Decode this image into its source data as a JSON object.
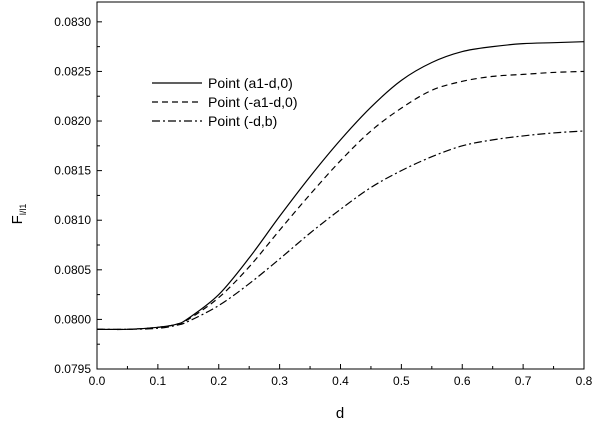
{
  "chart_data": {
    "type": "line",
    "title": "",
    "xlabel": "d",
    "ylabel_main": "F",
    "ylabel_sub": "l/l1",
    "xlim": [
      0.0,
      0.8
    ],
    "ylim": [
      0.0795,
      0.0832
    ],
    "xticks": [
      0.0,
      0.1,
      0.2,
      0.3,
      0.4,
      0.5,
      0.6,
      0.7,
      0.8
    ],
    "xtick_labels": [
      "0.0",
      "0.1",
      "0.2",
      "0.3",
      "0.4",
      "0.5",
      "0.6",
      "0.7",
      "0.8"
    ],
    "yticks": [
      0.0795,
      0.08,
      0.0805,
      0.081,
      0.0815,
      0.082,
      0.0825,
      0.083
    ],
    "ytick_labels": [
      "0.0795",
      "0.0800",
      "0.0805",
      "0.0810",
      "0.0815",
      "0.0820",
      "0.0825",
      "0.0830"
    ],
    "grid": false,
    "legend_position": "top-left",
    "series": [
      {
        "name": "Point (a1-d,0)",
        "line_style": "solid",
        "color": "#000000",
        "x": [
          0.0,
          0.05,
          0.1,
          0.13,
          0.15,
          0.2,
          0.25,
          0.3,
          0.35,
          0.4,
          0.45,
          0.5,
          0.55,
          0.6,
          0.65,
          0.7,
          0.75,
          0.8
        ],
        "y": [
          0.0799,
          0.0799,
          0.07992,
          0.07995,
          0.08001,
          0.08025,
          0.08062,
          0.08104,
          0.08144,
          0.08181,
          0.08214,
          0.08241,
          0.08259,
          0.0827,
          0.08275,
          0.08278,
          0.08279,
          0.0828
        ]
      },
      {
        "name": "Point (-a1-d,0)",
        "line_style": "dashed",
        "color": "#000000",
        "x": [
          0.0,
          0.05,
          0.1,
          0.13,
          0.15,
          0.2,
          0.25,
          0.3,
          0.35,
          0.4,
          0.45,
          0.5,
          0.55,
          0.6,
          0.65,
          0.7,
          0.75,
          0.8
        ],
        "y": [
          0.0799,
          0.0799,
          0.07992,
          0.07995,
          0.08,
          0.08022,
          0.08053,
          0.0809,
          0.08126,
          0.0816,
          0.0819,
          0.08213,
          0.08231,
          0.0824,
          0.08245,
          0.08247,
          0.08249,
          0.0825
        ]
      },
      {
        "name": "Point (-d,b)",
        "line_style": "dashdot",
        "color": "#000000",
        "x": [
          0.0,
          0.05,
          0.1,
          0.13,
          0.15,
          0.2,
          0.25,
          0.3,
          0.35,
          0.4,
          0.45,
          0.5,
          0.55,
          0.6,
          0.65,
          0.7,
          0.75,
          0.8
        ],
        "y": [
          0.0799,
          0.0799,
          0.07991,
          0.07994,
          0.07998,
          0.08014,
          0.08036,
          0.08061,
          0.08087,
          0.08111,
          0.08133,
          0.0815,
          0.08164,
          0.08175,
          0.08181,
          0.08185,
          0.08188,
          0.0819
        ]
      }
    ]
  }
}
